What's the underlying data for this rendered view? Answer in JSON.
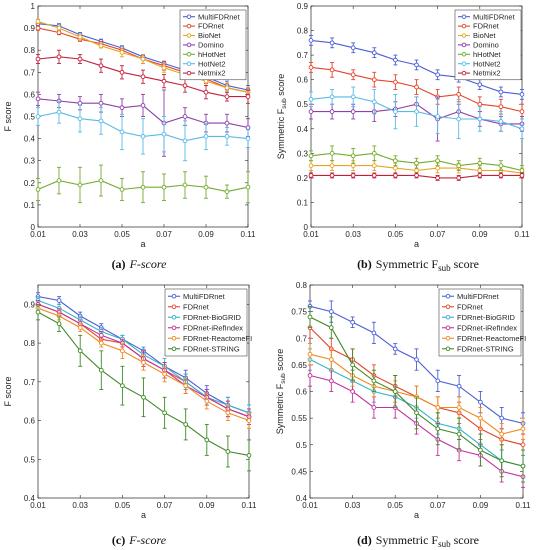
{
  "chart_data": [
    {
      "type": "line",
      "panel": "a",
      "caption_label": "(a)",
      "caption_text": "F-score",
      "xlabel": "a",
      "ylabel": "F score",
      "xlim": [
        0.01,
        0.11
      ],
      "ylim": [
        0,
        1
      ],
      "xticks": [
        "0.01",
        "0.03",
        "0.05",
        "0.07",
        "0.09",
        "0.11"
      ],
      "yticks": [
        "0",
        "0.1",
        "0.2",
        "0.3",
        "0.4",
        "0.5",
        "0.6",
        "0.7",
        "0.8",
        "0.9",
        "1"
      ],
      "legend_position": "top-right",
      "x": [
        0.01,
        0.02,
        0.03,
        0.04,
        0.05,
        0.06,
        0.07,
        0.08,
        0.09,
        0.1,
        0.11
      ],
      "series": [
        {
          "name": "MultiFDRnet",
          "color": "#4a5fd6",
          "values": [
            0.92,
            0.91,
            0.87,
            0.84,
            0.81,
            0.77,
            0.74,
            0.71,
            0.68,
            0.64,
            0.62
          ],
          "err": [
            0.01,
            0.01,
            0.01,
            0.01,
            0.01,
            0.01,
            0.01,
            0.02,
            0.02,
            0.02,
            0.02
          ]
        },
        {
          "name": "FDRnet",
          "color": "#e3462b",
          "values": [
            0.9,
            0.88,
            0.85,
            0.83,
            0.8,
            0.76,
            0.73,
            0.7,
            0.67,
            0.63,
            0.61
          ],
          "err": [
            0.01,
            0.01,
            0.01,
            0.01,
            0.01,
            0.02,
            0.02,
            0.02,
            0.02,
            0.02,
            0.02
          ]
        },
        {
          "name": "BioNet",
          "color": "#e5a421",
          "values": [
            0.93,
            0.9,
            0.86,
            0.82,
            0.79,
            0.76,
            0.72,
            0.69,
            0.66,
            0.63,
            0.61
          ],
          "err": [
            0.01,
            0.01,
            0.01,
            0.01,
            0.02,
            0.02,
            0.02,
            0.02,
            0.02,
            0.02,
            0.02
          ]
        },
        {
          "name": "Domino",
          "color": "#8e3fa8",
          "values": [
            0.58,
            0.57,
            0.56,
            0.56,
            0.54,
            0.55,
            0.47,
            0.5,
            0.47,
            0.47,
            0.45
          ],
          "err": [
            0.03,
            0.03,
            0.03,
            0.04,
            0.04,
            0.05,
            0.15,
            0.04,
            0.04,
            0.04,
            0.04
          ]
        },
        {
          "name": "hHotNet",
          "color": "#74ab2f",
          "values": [
            0.17,
            0.21,
            0.19,
            0.21,
            0.17,
            0.18,
            0.18,
            0.19,
            0.18,
            0.16,
            0.18
          ],
          "err": [
            0.05,
            0.06,
            0.08,
            0.07,
            0.05,
            0.07,
            0.06,
            0.06,
            0.05,
            0.03,
            0.07
          ]
        },
        {
          "name": "HotNet2",
          "color": "#57bbe6",
          "values": [
            0.5,
            0.52,
            0.49,
            0.48,
            0.43,
            0.41,
            0.42,
            0.39,
            0.41,
            0.41,
            0.4
          ],
          "err": [
            0.04,
            0.05,
            0.06,
            0.06,
            0.08,
            0.08,
            0.08,
            0.09,
            0.06,
            0.04,
            0.04
          ]
        },
        {
          "name": "Netmix2",
          "color": "#c4203a",
          "values": [
            0.76,
            0.77,
            0.76,
            0.73,
            0.7,
            0.68,
            0.66,
            0.64,
            0.61,
            0.59,
            0.59
          ],
          "err": [
            0.02,
            0.03,
            0.02,
            0.03,
            0.03,
            0.03,
            0.03,
            0.03,
            0.03,
            0.02,
            0.03
          ]
        }
      ]
    },
    {
      "type": "line",
      "panel": "b",
      "caption_label": "(b)",
      "caption_text": "Symmetric F",
      "caption_sub": "sub",
      "caption_tail": " score",
      "xlabel": "a",
      "ylabel": "Symmetric F",
      "ylabel_sub": "sub",
      "ylabel_tail": " score",
      "xlim": [
        0.01,
        0.11
      ],
      "ylim": [
        0,
        0.9
      ],
      "xticks": [
        "0.01",
        "0.03",
        "0.05",
        "0.07",
        "0.09",
        "0.11"
      ],
      "yticks": [
        "0",
        "0.1",
        "0.2",
        "0.3",
        "0.4",
        "0.5",
        "0.6",
        "0.7",
        "0.8",
        "0.9"
      ],
      "legend_position": "top-right",
      "x": [
        0.01,
        0.02,
        0.03,
        0.04,
        0.05,
        0.06,
        0.07,
        0.08,
        0.09,
        0.1,
        0.11
      ],
      "series": [
        {
          "name": "MultiFDRnet",
          "color": "#4a5fd6",
          "values": [
            0.76,
            0.75,
            0.73,
            0.71,
            0.68,
            0.66,
            0.62,
            0.61,
            0.58,
            0.55,
            0.54
          ],
          "err": [
            0.02,
            0.02,
            0.02,
            0.02,
            0.02,
            0.02,
            0.02,
            0.02,
            0.02,
            0.02,
            0.02
          ]
        },
        {
          "name": "FDRnet",
          "color": "#e3462b",
          "values": [
            0.65,
            0.64,
            0.62,
            0.6,
            0.59,
            0.57,
            0.53,
            0.54,
            0.5,
            0.49,
            0.47
          ],
          "err": [
            0.02,
            0.03,
            0.02,
            0.03,
            0.03,
            0.03,
            0.03,
            0.03,
            0.03,
            0.03,
            0.03
          ]
        },
        {
          "name": "BioNet",
          "color": "#e5a421",
          "values": [
            0.25,
            0.25,
            0.25,
            0.25,
            0.24,
            0.23,
            0.24,
            0.24,
            0.23,
            0.23,
            0.22
          ],
          "err": [
            0.02,
            0.02,
            0.02,
            0.02,
            0.02,
            0.02,
            0.02,
            0.02,
            0.02,
            0.02,
            0.02
          ]
        },
        {
          "name": "Domino",
          "color": "#8e3fa8",
          "values": [
            0.47,
            0.47,
            0.47,
            0.47,
            0.48,
            0.5,
            0.44,
            0.47,
            0.44,
            0.42,
            0.42
          ],
          "err": [
            0.03,
            0.03,
            0.03,
            0.04,
            0.03,
            0.03,
            0.09,
            0.03,
            0.03,
            0.03,
            0.03
          ]
        },
        {
          "name": "hHotNet",
          "color": "#74ab2f",
          "values": [
            0.29,
            0.3,
            0.29,
            0.3,
            0.27,
            0.26,
            0.27,
            0.25,
            0.26,
            0.25,
            0.23
          ],
          "err": [
            0.02,
            0.03,
            0.03,
            0.03,
            0.02,
            0.02,
            0.02,
            0.02,
            0.02,
            0.02,
            0.02
          ]
        },
        {
          "name": "HotNet2",
          "color": "#57bbe6",
          "values": [
            0.52,
            0.53,
            0.53,
            0.51,
            0.47,
            0.47,
            0.45,
            0.44,
            0.44,
            0.43,
            0.4
          ],
          "err": [
            0.03,
            0.03,
            0.04,
            0.05,
            0.07,
            0.06,
            0.07,
            0.08,
            0.05,
            0.04,
            0.04
          ]
        },
        {
          "name": "Netmix2",
          "color": "#c4203a",
          "values": [
            0.21,
            0.21,
            0.21,
            0.21,
            0.21,
            0.21,
            0.2,
            0.2,
            0.21,
            0.21,
            0.21
          ],
          "err": [
            0.01,
            0.01,
            0.01,
            0.01,
            0.01,
            0.01,
            0.01,
            0.01,
            0.01,
            0.01,
            0.01
          ]
        }
      ]
    },
    {
      "type": "line",
      "panel": "c",
      "caption_label": "(c)",
      "caption_text": "F-score",
      "xlabel": "a",
      "ylabel": "F score",
      "xlim": [
        0.01,
        0.11
      ],
      "ylim": [
        0.4,
        0.95
      ],
      "xticks": [
        "0.01",
        "0.03",
        "0.05",
        "0.07",
        "0.09",
        "0.11"
      ],
      "yticks": [
        "0.4",
        "0.5",
        "0.6",
        "0.7",
        "0.8",
        "0.9"
      ],
      "legend_position": "top-right",
      "x": [
        0.01,
        0.02,
        0.03,
        0.04,
        0.05,
        0.06,
        0.07,
        0.08,
        0.09,
        0.1,
        0.11
      ],
      "series": [
        {
          "name": "MultiFDRnet",
          "color": "#4a5fd6",
          "values": [
            0.92,
            0.91,
            0.87,
            0.84,
            0.81,
            0.78,
            0.74,
            0.71,
            0.67,
            0.64,
            0.62
          ],
          "err": [
            0.01,
            0.01,
            0.01,
            0.01,
            0.01,
            0.01,
            0.01,
            0.02,
            0.02,
            0.02,
            0.02
          ]
        },
        {
          "name": "FDRnet",
          "color": "#e3462b",
          "values": [
            0.9,
            0.88,
            0.85,
            0.81,
            0.8,
            0.76,
            0.73,
            0.7,
            0.66,
            0.63,
            0.61
          ],
          "err": [
            0.01,
            0.01,
            0.01,
            0.01,
            0.01,
            0.02,
            0.02,
            0.02,
            0.02,
            0.02,
            0.02
          ]
        },
        {
          "name": "FDRnet-BioGRID",
          "color": "#37b3c8",
          "values": [
            0.91,
            0.89,
            0.86,
            0.83,
            0.81,
            0.77,
            0.74,
            0.7,
            0.66,
            0.64,
            0.62
          ],
          "err": [
            0.01,
            0.01,
            0.01,
            0.01,
            0.01,
            0.02,
            0.02,
            0.02,
            0.02,
            0.02,
            0.02
          ]
        },
        {
          "name": "FDRnet-iRefIndex",
          "color": "#c2309d",
          "values": [
            0.9,
            0.88,
            0.85,
            0.82,
            0.8,
            0.76,
            0.73,
            0.69,
            0.66,
            0.63,
            0.61
          ],
          "err": [
            0.01,
            0.01,
            0.01,
            0.01,
            0.01,
            0.02,
            0.02,
            0.02,
            0.02,
            0.02,
            0.02
          ]
        },
        {
          "name": "FDRnet-ReactomeFI",
          "color": "#f08a1d",
          "values": [
            0.89,
            0.87,
            0.84,
            0.8,
            0.78,
            0.75,
            0.72,
            0.69,
            0.65,
            0.62,
            0.6
          ],
          "err": [
            0.01,
            0.01,
            0.01,
            0.01,
            0.02,
            0.02,
            0.02,
            0.02,
            0.02,
            0.02,
            0.02
          ]
        },
        {
          "name": "FDRnet-STRING",
          "color": "#3f8a27",
          "values": [
            0.88,
            0.85,
            0.78,
            0.73,
            0.69,
            0.66,
            0.62,
            0.59,
            0.55,
            0.52,
            0.51
          ],
          "err": [
            0.02,
            0.02,
            0.04,
            0.05,
            0.05,
            0.05,
            0.04,
            0.04,
            0.04,
            0.04,
            0.04
          ]
        }
      ]
    },
    {
      "type": "line",
      "panel": "d",
      "caption_label": "(d)",
      "caption_text": "Symmetric F",
      "caption_sub": "sub",
      "caption_tail": " score",
      "xlabel": "a",
      "ylabel": "Symmetric F",
      "ylabel_sub": "sub",
      "ylabel_tail": " score",
      "xlim": [
        0.01,
        0.11
      ],
      "ylim": [
        0.4,
        0.8
      ],
      "xticks": [
        "0.01",
        "0.03",
        "0.05",
        "0.07",
        "0.09",
        "0.11"
      ],
      "yticks": [
        "0.4",
        "0.45",
        "0.5",
        "0.55",
        "0.6",
        "0.65",
        "0.7",
        "0.75",
        "0.8"
      ],
      "legend_position": "top-right",
      "x": [
        0.01,
        0.02,
        0.03,
        0.04,
        0.05,
        0.06,
        0.07,
        0.08,
        0.09,
        0.1,
        0.11
      ],
      "series": [
        {
          "name": "MultiFDRnet",
          "color": "#4a5fd6",
          "values": [
            0.76,
            0.75,
            0.73,
            0.71,
            0.68,
            0.66,
            0.62,
            0.61,
            0.58,
            0.55,
            0.54
          ],
          "err": [
            0.01,
            0.02,
            0.01,
            0.02,
            0.01,
            0.02,
            0.02,
            0.02,
            0.02,
            0.02,
            0.02
          ]
        },
        {
          "name": "FDRnet",
          "color": "#e3462b",
          "values": [
            0.72,
            0.68,
            0.66,
            0.63,
            0.61,
            0.59,
            0.57,
            0.56,
            0.53,
            0.51,
            0.5
          ],
          "err": [
            0.02,
            0.02,
            0.02,
            0.02,
            0.02,
            0.02,
            0.02,
            0.02,
            0.02,
            0.02,
            0.02
          ]
        },
        {
          "name": "FDRnet-BioGRID",
          "color": "#37b3c8",
          "values": [
            0.66,
            0.64,
            0.62,
            0.6,
            0.59,
            0.57,
            0.54,
            0.53,
            0.5,
            0.47,
            0.46
          ],
          "err": [
            0.02,
            0.02,
            0.02,
            0.02,
            0.02,
            0.02,
            0.02,
            0.02,
            0.02,
            0.02,
            0.02
          ]
        },
        {
          "name": "FDRnet-iRefIndex",
          "color": "#c2309d",
          "values": [
            0.63,
            0.62,
            0.6,
            0.57,
            0.57,
            0.54,
            0.51,
            0.49,
            0.48,
            0.45,
            0.44
          ],
          "err": [
            0.02,
            0.02,
            0.02,
            0.02,
            0.02,
            0.02,
            0.03,
            0.02,
            0.02,
            0.02,
            0.02
          ]
        },
        {
          "name": "FDRnet-ReactomeFI",
          "color": "#f08a1d",
          "values": [
            0.67,
            0.66,
            0.63,
            0.61,
            0.6,
            0.59,
            0.57,
            0.57,
            0.55,
            0.52,
            0.53
          ],
          "err": [
            0.02,
            0.02,
            0.02,
            0.02,
            0.02,
            0.02,
            0.02,
            0.02,
            0.02,
            0.02,
            0.02
          ]
        },
        {
          "name": "FDRnet-STRING",
          "color": "#3f8a27",
          "values": [
            0.74,
            0.72,
            0.65,
            0.62,
            0.6,
            0.56,
            0.53,
            0.52,
            0.49,
            0.47,
            0.46
          ],
          "err": [
            0.02,
            0.02,
            0.03,
            0.02,
            0.03,
            0.03,
            0.03,
            0.03,
            0.03,
            0.03,
            0.03
          ]
        }
      ]
    }
  ]
}
